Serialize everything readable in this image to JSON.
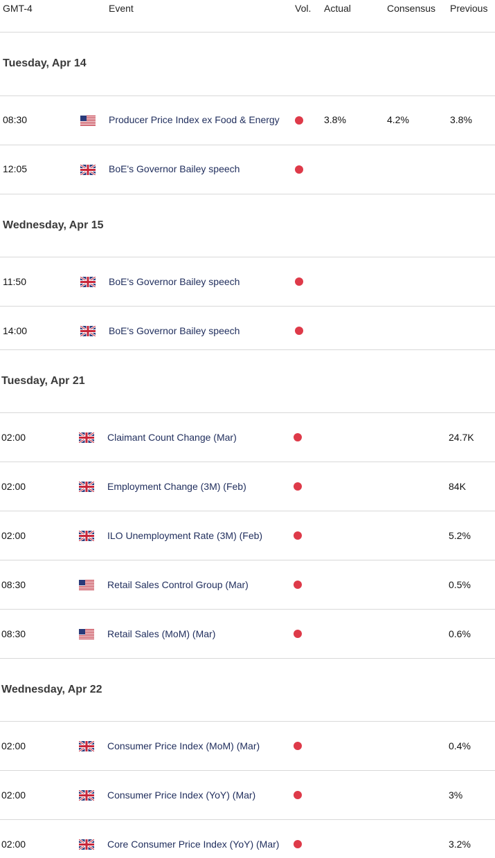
{
  "header": {
    "timezone": "GMT-4",
    "event": "Event",
    "vol": "Vol.",
    "actual": "Actual",
    "consensus": "Consensus",
    "previous": "Previous"
  },
  "dates": [
    "Tuesday, Apr 14",
    "Wednesday, Apr 15",
    "Tuesday, Apr 21",
    "Wednesday, Apr 22"
  ],
  "events": [
    {
      "time": "08:30",
      "flag": "us-flag-icon",
      "name": "Producer Price Index ex Food & Energy",
      "actual": "3.8%",
      "consensus": "4.2%",
      "previous": "3.8%"
    },
    {
      "time": "12:05",
      "flag": "uk-flag-icon",
      "name": "BoE's Governor Bailey speech",
      "actual": "",
      "consensus": "",
      "previous": ""
    },
    {
      "time": "11:50",
      "flag": "uk-flag-icon",
      "name": "BoE's Governor Bailey speech",
      "actual": "",
      "consensus": "",
      "previous": ""
    },
    {
      "time": "14:00",
      "flag": "uk-flag-icon",
      "name": "BoE's Governor Bailey speech",
      "actual": "",
      "consensus": "",
      "previous": ""
    },
    {
      "time": "02:00",
      "flag": "uk-flag-icon",
      "name": "Claimant Count Change (Mar)",
      "actual": "",
      "consensus": "",
      "previous": "24.7K"
    },
    {
      "time": "02:00",
      "flag": "uk-flag-icon",
      "name": "Employment Change (3M) (Feb)",
      "actual": "",
      "consensus": "",
      "previous": "84K"
    },
    {
      "time": "02:00",
      "flag": "uk-flag-icon",
      "name": "ILO Unemployment Rate (3M) (Feb)",
      "actual": "",
      "consensus": "",
      "previous": "5.2%"
    },
    {
      "time": "08:30",
      "flag": "us-flag-icon",
      "name": "Retail Sales Control Group (Mar)",
      "actual": "",
      "consensus": "",
      "previous": "0.5%"
    },
    {
      "time": "08:30",
      "flag": "us-flag-icon",
      "name": "Retail Sales (MoM) (Mar)",
      "actual": "",
      "consensus": "",
      "previous": "0.6%"
    },
    {
      "time": "02:00",
      "flag": "uk-flag-icon",
      "name": "Consumer Price Index (MoM) (Mar)",
      "actual": "",
      "consensus": "",
      "previous": "0.4%"
    },
    {
      "time": "02:00",
      "flag": "uk-flag-icon",
      "name": "Consumer Price Index (YoY) (Mar)",
      "actual": "",
      "consensus": "",
      "previous": "3%"
    },
    {
      "time": "02:00",
      "flag": "uk-flag-icon",
      "name": "Core Consumer Price Index (YoY) (Mar)",
      "actual": "",
      "consensus": "",
      "previous": "3.2%"
    }
  ],
  "colors": {
    "volatility_dot": "#de3a49",
    "event_text": "#1f2d5c",
    "divider": "#d8d8d8"
  }
}
